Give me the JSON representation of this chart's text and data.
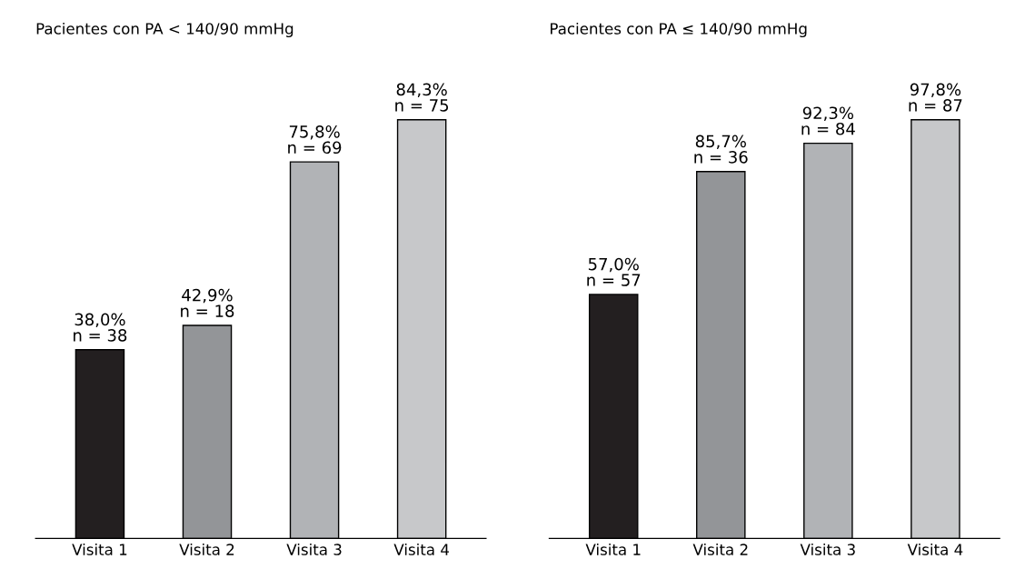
{
  "chart_data": [
    {
      "type": "bar",
      "title": "Pacientes con PA < 140/90 mmHg",
      "categories": [
        "Visita 1",
        "Visita 2",
        "Visita 3",
        "Visita 4"
      ],
      "values": [
        38.0,
        42.9,
        75.8,
        84.3
      ],
      "colors": [
        "#231f20",
        "#939598",
        "#b1b3b6",
        "#c7c8ca"
      ],
      "value_labels": [
        "38,0%\nn = 38",
        "42,9%\nn = 18",
        "75,8%\nn = 69",
        "84,3%\nn = 75"
      ],
      "grid": false,
      "legend": false
    },
    {
      "type": "bar",
      "title": "Pacientes con PA ≤ 140/90 mmHg",
      "categories": [
        "Visita 1",
        "Visita 2",
        "Visita 3",
        "Visita 4"
      ],
      "values": [
        57.0,
        85.7,
        92.3,
        97.8
      ],
      "colors": [
        "#231f20",
        "#939598",
        "#b1b3b6",
        "#c7c8ca"
      ],
      "value_labels": [
        "57,0%\nn = 57",
        "85,7%\nn = 36",
        "92,3%\nn = 84",
        "97,8%\nn = 87"
      ],
      "grid": false,
      "legend": false
    }
  ]
}
